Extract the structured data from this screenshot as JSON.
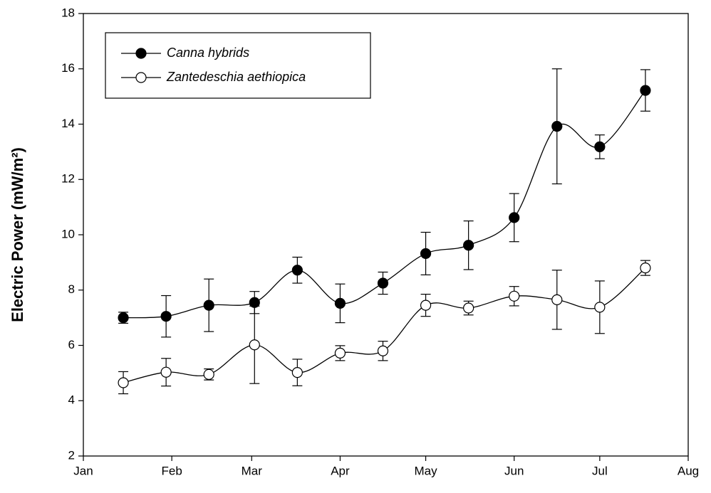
{
  "chart_data": {
    "type": "line",
    "y_label": "Electric Power (mW/m²)",
    "x": [
      14,
      29,
      44,
      60,
      75,
      90,
      105,
      120,
      135,
      151,
      166,
      181,
      197
    ],
    "xlim": [
      0,
      212
    ],
    "xticks": [
      {
        "value": 0,
        "label": "Jan"
      },
      {
        "value": 31,
        "label": "Feb"
      },
      {
        "value": 59,
        "label": "Mar"
      },
      {
        "value": 90,
        "label": "Apr"
      },
      {
        "value": 120,
        "label": "May"
      },
      {
        "value": 151,
        "label": "Jun"
      },
      {
        "value": 181,
        "label": "Jul"
      },
      {
        "value": 212,
        "label": "Aug"
      }
    ],
    "ylim": [
      2,
      18
    ],
    "yticks": [
      2,
      4,
      6,
      8,
      10,
      12,
      14,
      16,
      18
    ],
    "grid": false,
    "legend": "upper left",
    "series": [
      {
        "name": "Canna hybrids",
        "color": "#000000",
        "values": [
          7.0,
          7.05,
          7.45,
          7.55,
          8.72,
          7.52,
          8.25,
          9.32,
          9.62,
          10.62,
          13.92,
          13.18,
          15.22
        ],
        "errors": [
          0.2,
          0.75,
          0.95,
          0.4,
          0.47,
          0.7,
          0.4,
          0.77,
          0.88,
          0.87,
          2.08,
          0.43,
          0.75
        ]
      },
      {
        "name": "Zantedeschia aethiopica",
        "color": "#ffffff",
        "values": [
          4.65,
          5.03,
          4.95,
          6.02,
          5.02,
          5.72,
          5.8,
          7.45,
          7.35,
          7.78,
          7.65,
          7.38,
          8.8
        ],
        "errors": [
          0.4,
          0.5,
          0.2,
          1.4,
          0.48,
          0.27,
          0.35,
          0.4,
          0.25,
          0.35,
          1.07,
          0.95,
          0.27
        ]
      }
    ]
  }
}
